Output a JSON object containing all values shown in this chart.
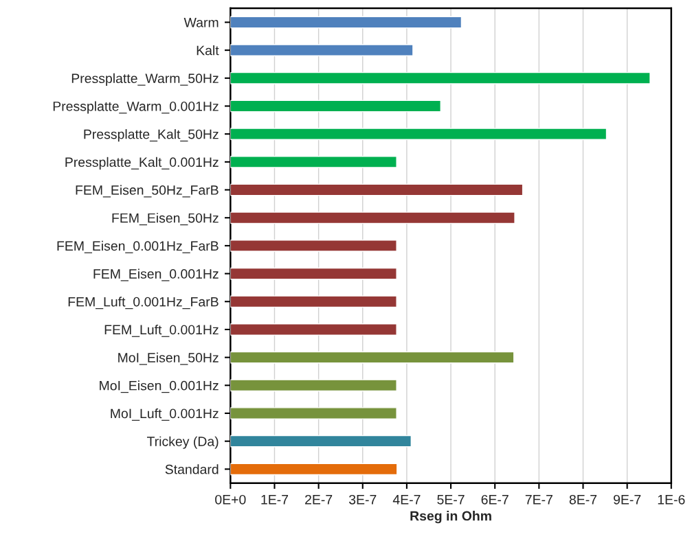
{
  "chart_data": {
    "type": "bar",
    "orientation": "horizontal",
    "xlabel": "Rseg in Ohm",
    "categories": [
      "Warm",
      "Kalt",
      "Pressplatte_Warm_50Hz",
      "Pressplatte_Warm_0.001Hz",
      "Pressplatte_Kalt_50Hz",
      "Pressplatte_Kalt_0.001Hz",
      "FEM_Eisen_50Hz_FarB",
      "FEM_Eisen_50Hz",
      "FEM_Eisen_0.001Hz_FarB",
      "FEM_Eisen_0.001Hz",
      "FEM_Luft_0.001Hz_FarB",
      "FEM_Luft_0.001Hz",
      "MoI_Eisen_50Hz",
      "MoI_Eisen_0.001Hz",
      "MoI_Luft_0.001Hz",
      "Trickey (Da)",
      "Standard"
    ],
    "values": [
      5.24e-07,
      4.14e-07,
      9.52e-07,
      4.77e-07,
      8.53e-07,
      3.77e-07,
      6.63e-07,
      6.45e-07,
      3.77e-07,
      3.77e-07,
      3.77e-07,
      3.77e-07,
      6.43e-07,
      3.77e-07,
      3.77e-07,
      4.1e-07,
      3.78e-07
    ],
    "colors": [
      "#4f81bd",
      "#4f81bd",
      "#00b050",
      "#00b050",
      "#00b050",
      "#00b050",
      "#953735",
      "#953735",
      "#953735",
      "#953735",
      "#953735",
      "#953735",
      "#77933c",
      "#77933c",
      "#77933c",
      "#31859c",
      "#e46c0a"
    ],
    "xlim": [
      0,
      1e-06
    ],
    "xticks": [
      {
        "value": 0,
        "label": "0E+0"
      },
      {
        "value": 1e-07,
        "label": "1E-7"
      },
      {
        "value": 2e-07,
        "label": "2E-7"
      },
      {
        "value": 3e-07,
        "label": "3E-7"
      },
      {
        "value": 4e-07,
        "label": "4E-7"
      },
      {
        "value": 5e-07,
        "label": "5E-7"
      },
      {
        "value": 6e-07,
        "label": "6E-7"
      },
      {
        "value": 7e-07,
        "label": "7E-7"
      },
      {
        "value": 8e-07,
        "label": "8E-7"
      },
      {
        "value": 9e-07,
        "label": "9E-7"
      },
      {
        "value": 1e-06,
        "label": "1E-6"
      }
    ],
    "grid": "x"
  }
}
